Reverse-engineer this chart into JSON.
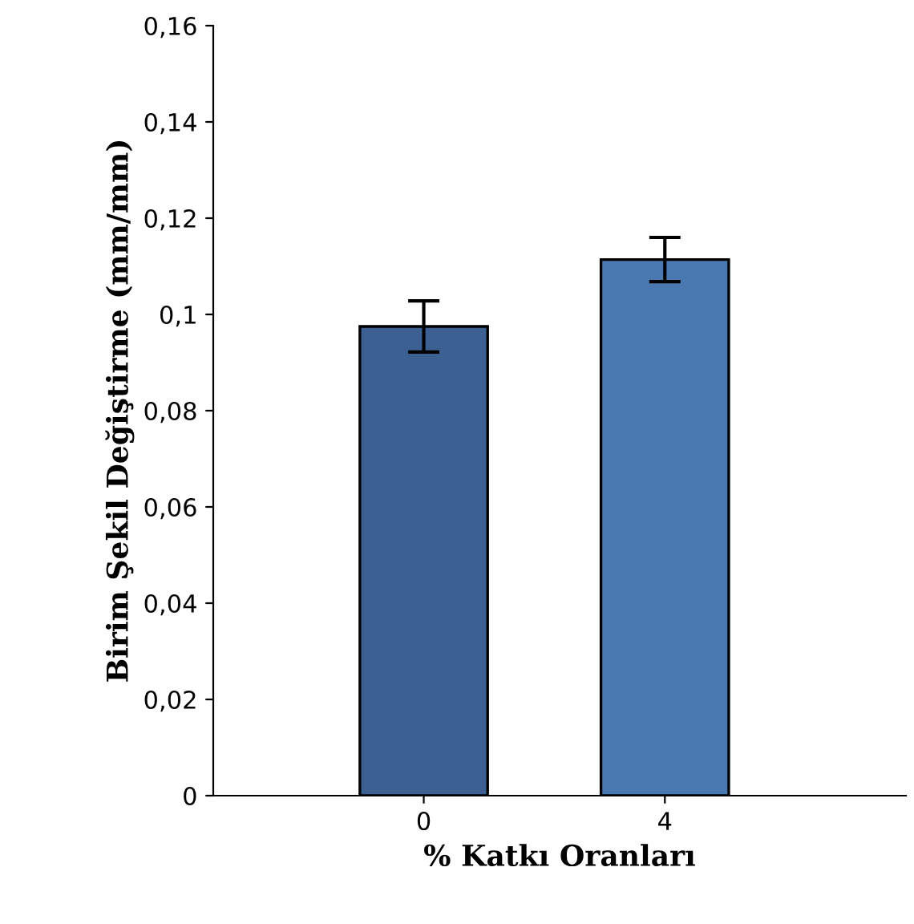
{
  "chart_data": {
    "type": "bar",
    "xlabel": "% Katkı Oranları",
    "ylabel": "Birim Şekil Değiştirme (mm/mm)",
    "categories": [
      "0",
      "4"
    ],
    "values": [
      0.0975,
      0.1114
    ],
    "errors": [
      0.0053,
      0.0046
    ],
    "colors": [
      "#3b6091",
      "#4a79b1"
    ],
    "ylim": [
      0,
      0.16
    ],
    "yticks": [
      {
        "value": 0,
        "label": "0"
      },
      {
        "value": 0.02,
        "label": "0,02"
      },
      {
        "value": 0.04,
        "label": "0,04"
      },
      {
        "value": 0.06,
        "label": "0,06"
      },
      {
        "value": 0.08,
        "label": "0,08"
      },
      {
        "value": 0.1,
        "label": "0,1"
      },
      {
        "value": 0.12,
        "label": "0,12"
      },
      {
        "value": 0.14,
        "label": "0,14"
      },
      {
        "value": 0.16,
        "label": "0,16"
      }
    ],
    "grid": false,
    "legend": false
  }
}
